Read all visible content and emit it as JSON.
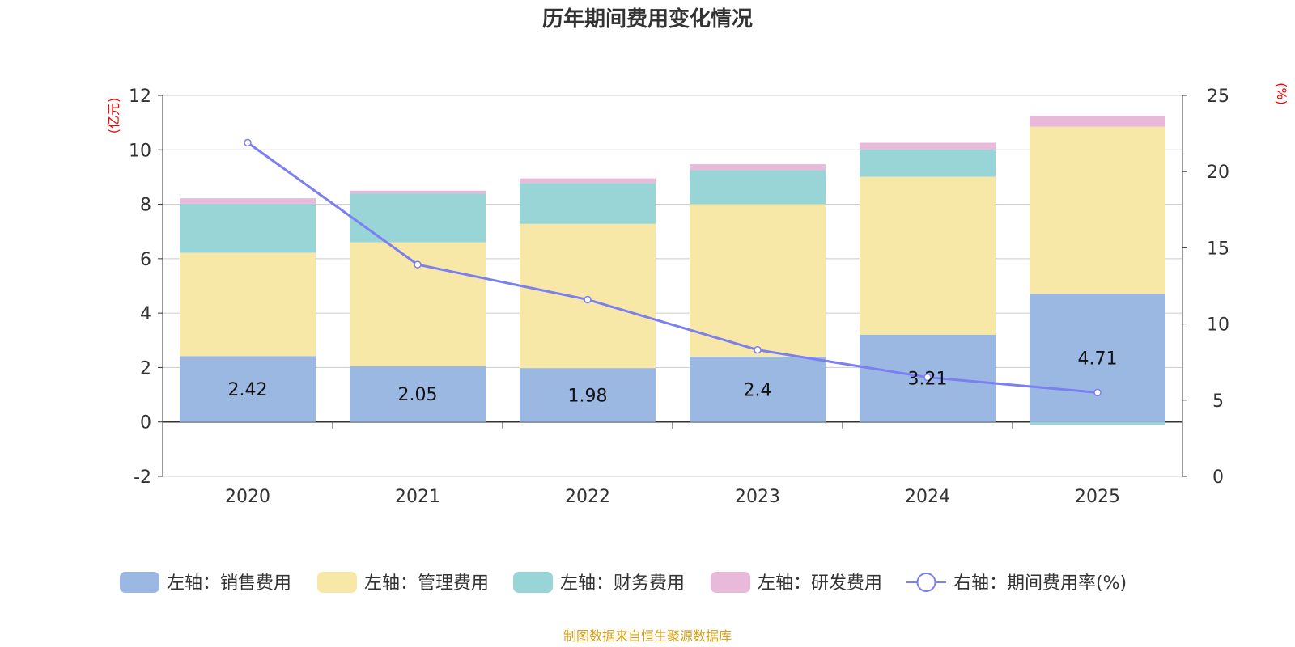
{
  "chart_data": {
    "type": "bar",
    "title": "历年期间费用变化情况",
    "categories": [
      "2020",
      "2021",
      "2022",
      "2023",
      "2024",
      "2025"
    ],
    "left_axis": {
      "unit": "(亿元)",
      "ylim": [
        -2,
        12
      ],
      "ticks": [
        "-2",
        "0",
        "2",
        "4",
        "6",
        "8",
        "10",
        "12"
      ]
    },
    "right_axis": {
      "unit": "(%)",
      "ylim": [
        0,
        25
      ],
      "ticks": [
        "0",
        "5",
        "10",
        "15",
        "20",
        "25"
      ]
    },
    "series": [
      {
        "name": "左轴：销售费用",
        "color": "#9bb8e3",
        "values": [
          2.42,
          2.05,
          1.98,
          2.4,
          3.21,
          4.71
        ]
      },
      {
        "name": "左轴：管理费用",
        "color": "#f8e8a8",
        "values": [
          3.8,
          4.55,
          5.3,
          5.6,
          5.8,
          6.14
        ]
      },
      {
        "name": "左轴：财务费用",
        "color": "#99d5d6",
        "values": [
          1.8,
          1.8,
          1.5,
          1.25,
          1.0,
          -0.1
        ]
      },
      {
        "name": "左轴：研发费用",
        "color": "#e8b9d9",
        "values": [
          0.2,
          0.1,
          0.17,
          0.22,
          0.25,
          0.4
        ]
      }
    ],
    "line": {
      "name": "右轴：期间费用率(%)",
      "color": "#7b7ff0",
      "values": [
        21.9,
        13.9,
        11.6,
        8.3,
        6.5,
        5.5
      ]
    },
    "data_labels": [
      "2.42",
      "2.05",
      "1.98",
      "2.4",
      "3.21",
      "4.71"
    ],
    "stacked": true,
    "grid": true,
    "legend_position": "bottom"
  },
  "source_note": "制图数据来自恒生聚源数据库"
}
